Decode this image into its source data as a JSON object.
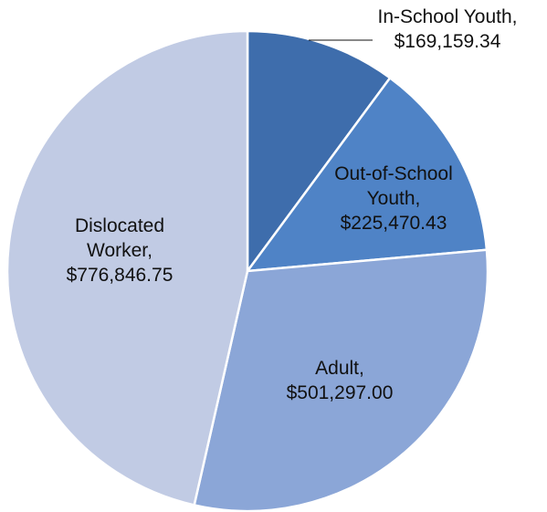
{
  "chart_data": {
    "type": "pie",
    "title": "",
    "slices": [
      {
        "label_lines": [
          "In-School Youth,",
          "$169,159.34"
        ],
        "value": 169159.34,
        "color": "#3e6dac"
      },
      {
        "label_lines": [
          "Out-of-School",
          "Youth,",
          "$225,470.43"
        ],
        "value": 225470.43,
        "color": "#4f83c6"
      },
      {
        "label_lines": [
          "Adult,",
          "$501,297.00"
        ],
        "value": 501297.0,
        "color": "#8ba6d7"
      },
      {
        "label_lines": [
          "Dislocated",
          "Worker,",
          "$776,846.75"
        ],
        "value": 776846.75,
        "color": "#c1cbe4"
      }
    ],
    "start_angle_deg": 0,
    "direction": "clockwise",
    "leader_line_on": [
      "In-School Youth"
    ]
  }
}
